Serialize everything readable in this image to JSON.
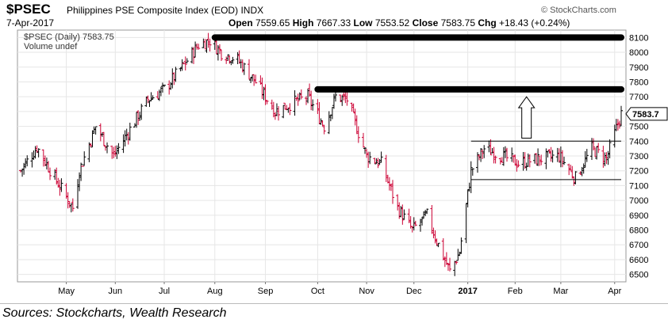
{
  "header": {
    "ticker": "$PSEC",
    "name": "Philippines PSE Composite Index (EOD)",
    "exchange": "INDX",
    "brand": "© StockCharts.com",
    "date": "7-Apr-2017",
    "open_label": "Open",
    "open": "7559.65",
    "high_label": "High",
    "high": "7667.33",
    "low_label": "Low",
    "low": "7553.52",
    "close_label": "Close",
    "close": "7583.75",
    "chg_label": "Chg",
    "chg": "+18.43 (+0.24%)"
  },
  "legend": {
    "series_label": "$PSEC (Daily) 7583.75",
    "volume_label": "Volume undef"
  },
  "source_text": "Sources: Stockcharts, Wealth Research",
  "colors": {
    "up": "#000000",
    "down": "#cc0033",
    "grid": "#e6e6e6",
    "resistance": "#000000",
    "last_price_tag": "#000000"
  },
  "icons": {
    "brand": "stockcharts-globe-icon",
    "arrow": "up-arrow-icon"
  },
  "chart_data": {
    "type": "ohlc",
    "title": "$PSEC Philippines PSE Composite Index (EOD) INDX",
    "y_axis_side": "right",
    "ylim": [
      6450,
      8150
    ],
    "yticks": [
      6500,
      6600,
      6700,
      6800,
      6900,
      7000,
      7100,
      7200,
      7300,
      7400,
      7500,
      7600,
      7700,
      7800,
      7900,
      8000,
      8100
    ],
    "last_price_label": "7583.7",
    "x_start": "2016-04-04",
    "x_end": "2017-04-07",
    "month_labels": [
      {
        "label": "May",
        "date": "2016-05-02"
      },
      {
        "label": "Jun",
        "date": "2016-06-01"
      },
      {
        "label": "Jul",
        "date": "2016-07-01"
      },
      {
        "label": "Aug",
        "date": "2016-08-01"
      },
      {
        "label": "Sep",
        "date": "2016-09-01"
      },
      {
        "label": "Oct",
        "date": "2016-10-03"
      },
      {
        "label": "Nov",
        "date": "2016-11-02"
      },
      {
        "label": "Dec",
        "date": "2016-12-01"
      },
      {
        "label": "2017",
        "date": "2017-01-03",
        "bold": true
      },
      {
        "label": "Feb",
        "date": "2017-02-01"
      },
      {
        "label": "Mar",
        "date": "2017-03-01"
      },
      {
        "label": "Apr",
        "date": "2017-04-03"
      }
    ],
    "close_path": [
      [
        "2016-04-04",
        7200
      ],
      [
        "2016-04-14",
        7360
      ],
      [
        "2016-04-25",
        7150
      ],
      [
        "2016-05-06",
        6950
      ],
      [
        "2016-05-10",
        7200
      ],
      [
        "2016-05-20",
        7500
      ],
      [
        "2016-05-31",
        7300
      ],
      [
        "2016-06-10",
        7480
      ],
      [
        "2016-06-21",
        7680
      ],
      [
        "2016-07-01",
        7750
      ],
      [
        "2016-07-12",
        7900
      ],
      [
        "2016-07-22",
        8050
      ],
      [
        "2016-07-29",
        8080
      ],
      [
        "2016-08-05",
        8000
      ],
      [
        "2016-08-15",
        7950
      ],
      [
        "2016-08-26",
        7800
      ],
      [
        "2016-09-07",
        7600
      ],
      [
        "2016-09-16",
        7650
      ],
      [
        "2016-09-27",
        7700
      ],
      [
        "2016-10-07",
        7500
      ],
      [
        "2016-10-14",
        7700
      ],
      [
        "2016-10-21",
        7680
      ],
      [
        "2016-11-02",
        7300
      ],
      [
        "2016-11-11",
        7250
      ],
      [
        "2016-11-21",
        6950
      ],
      [
        "2016-11-30",
        6800
      ],
      [
        "2016-12-09",
        6900
      ],
      [
        "2016-12-16",
        6700
      ],
      [
        "2016-12-23",
        6520
      ],
      [
        "2016-12-29",
        6650
      ],
      [
        "2017-01-05",
        7200
      ],
      [
        "2017-01-13",
        7350
      ],
      [
        "2017-01-24",
        7300
      ],
      [
        "2017-02-03",
        7250
      ],
      [
        "2017-02-15",
        7280
      ],
      [
        "2017-02-28",
        7300
      ],
      [
        "2017-03-10",
        7150
      ],
      [
        "2017-03-20",
        7350
      ],
      [
        "2017-03-29",
        7280
      ],
      [
        "2017-04-03",
        7450
      ],
      [
        "2017-04-07",
        7584
      ]
    ],
    "resistance_lines": [
      {
        "from": "2016-08-01",
        "to": "2017-04-07",
        "y": 8100
      },
      {
        "from": "2016-10-03",
        "to": "2017-04-07",
        "y": 7750
      }
    ],
    "range_lines": [
      {
        "from": "2017-01-05",
        "to": "2017-04-07",
        "y": 7400
      },
      {
        "from": "2017-01-05",
        "to": "2017-04-07",
        "y": 7140
      }
    ],
    "arrow": {
      "date": "2017-02-08",
      "from": 7420,
      "to": 7700
    }
  }
}
